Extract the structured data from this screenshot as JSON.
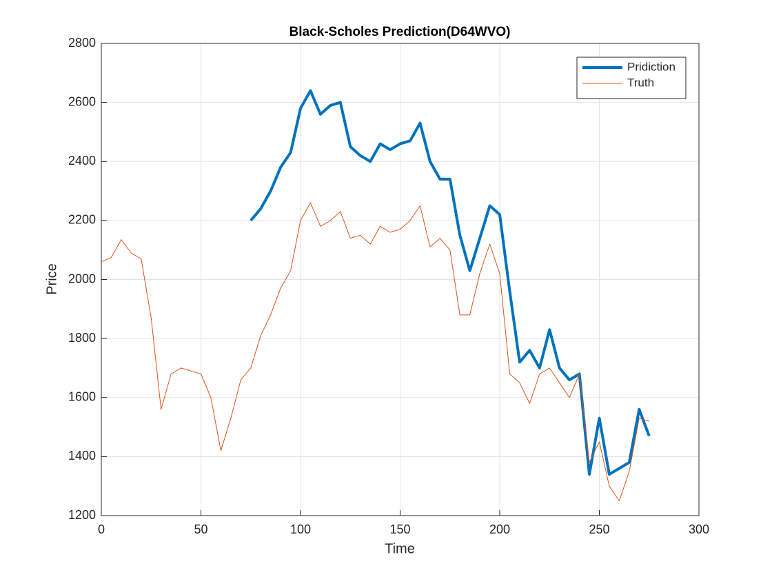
{
  "chart_data": {
    "type": "line",
    "title": "Black-Scholes Prediction(D64WVO)",
    "xlabel": "Time",
    "ylabel": "Price",
    "x": [
      0,
      5,
      10,
      15,
      20,
      25,
      30,
      35,
      40,
      45,
      50,
      55,
      60,
      65,
      70,
      75,
      80,
      85,
      90,
      95,
      100,
      105,
      110,
      115,
      120,
      125,
      130,
      135,
      140,
      145,
      150,
      155,
      160,
      165,
      170,
      175,
      180,
      185,
      190,
      195,
      200,
      205,
      210,
      215,
      220,
      225,
      230,
      235,
      240,
      245,
      250,
      255,
      260,
      265,
      270,
      275
    ],
    "series": [
      {
        "name": "Pridiction",
        "color": "#0072bd",
        "line_width": 4,
        "values": [
          null,
          null,
          null,
          null,
          null,
          null,
          null,
          null,
          null,
          null,
          null,
          null,
          null,
          null,
          null,
          2200,
          2240,
          2300,
          2380,
          2430,
          2580,
          2640,
          2560,
          2590,
          2600,
          2450,
          2420,
          2400,
          2460,
          2440,
          2460,
          2470,
          2530,
          2400,
          2340,
          2340,
          2150,
          2030,
          2140,
          2250,
          2220,
          1960,
          1720,
          1760,
          1700,
          1830,
          1700,
          1660,
          1680,
          1340,
          1530,
          1340,
          1360,
          1380,
          1560,
          1470
        ]
      },
      {
        "name": "Truth",
        "color": "#d95319",
        "line_width": 1,
        "values": [
          2060,
          2075,
          2135,
          2090,
          2070,
          1870,
          1560,
          1680,
          1700,
          1690,
          1680,
          1600,
          1420,
          1530,
          1660,
          1700,
          1810,
          1880,
          1970,
          2030,
          2200,
          2260,
          2180,
          2200,
          2230,
          2140,
          2150,
          2120,
          2180,
          2160,
          2170,
          2200,
          2250,
          2110,
          2140,
          2100,
          1880,
          1880,
          2020,
          2120,
          2020,
          1680,
          1650,
          1580,
          1680,
          1700,
          1650,
          1600,
          1680,
          1380,
          1450,
          1300,
          1250,
          1350,
          1530,
          1520
        ]
      }
    ],
    "xlim": [
      0,
      300
    ],
    "xticks": [
      0,
      50,
      100,
      150,
      200,
      250,
      300
    ],
    "ylim": [
      1200,
      2800
    ],
    "yticks": [
      1200,
      1400,
      1600,
      1800,
      2000,
      2200,
      2400,
      2600,
      2800
    ],
    "grid": true,
    "legend": "northeast"
  }
}
